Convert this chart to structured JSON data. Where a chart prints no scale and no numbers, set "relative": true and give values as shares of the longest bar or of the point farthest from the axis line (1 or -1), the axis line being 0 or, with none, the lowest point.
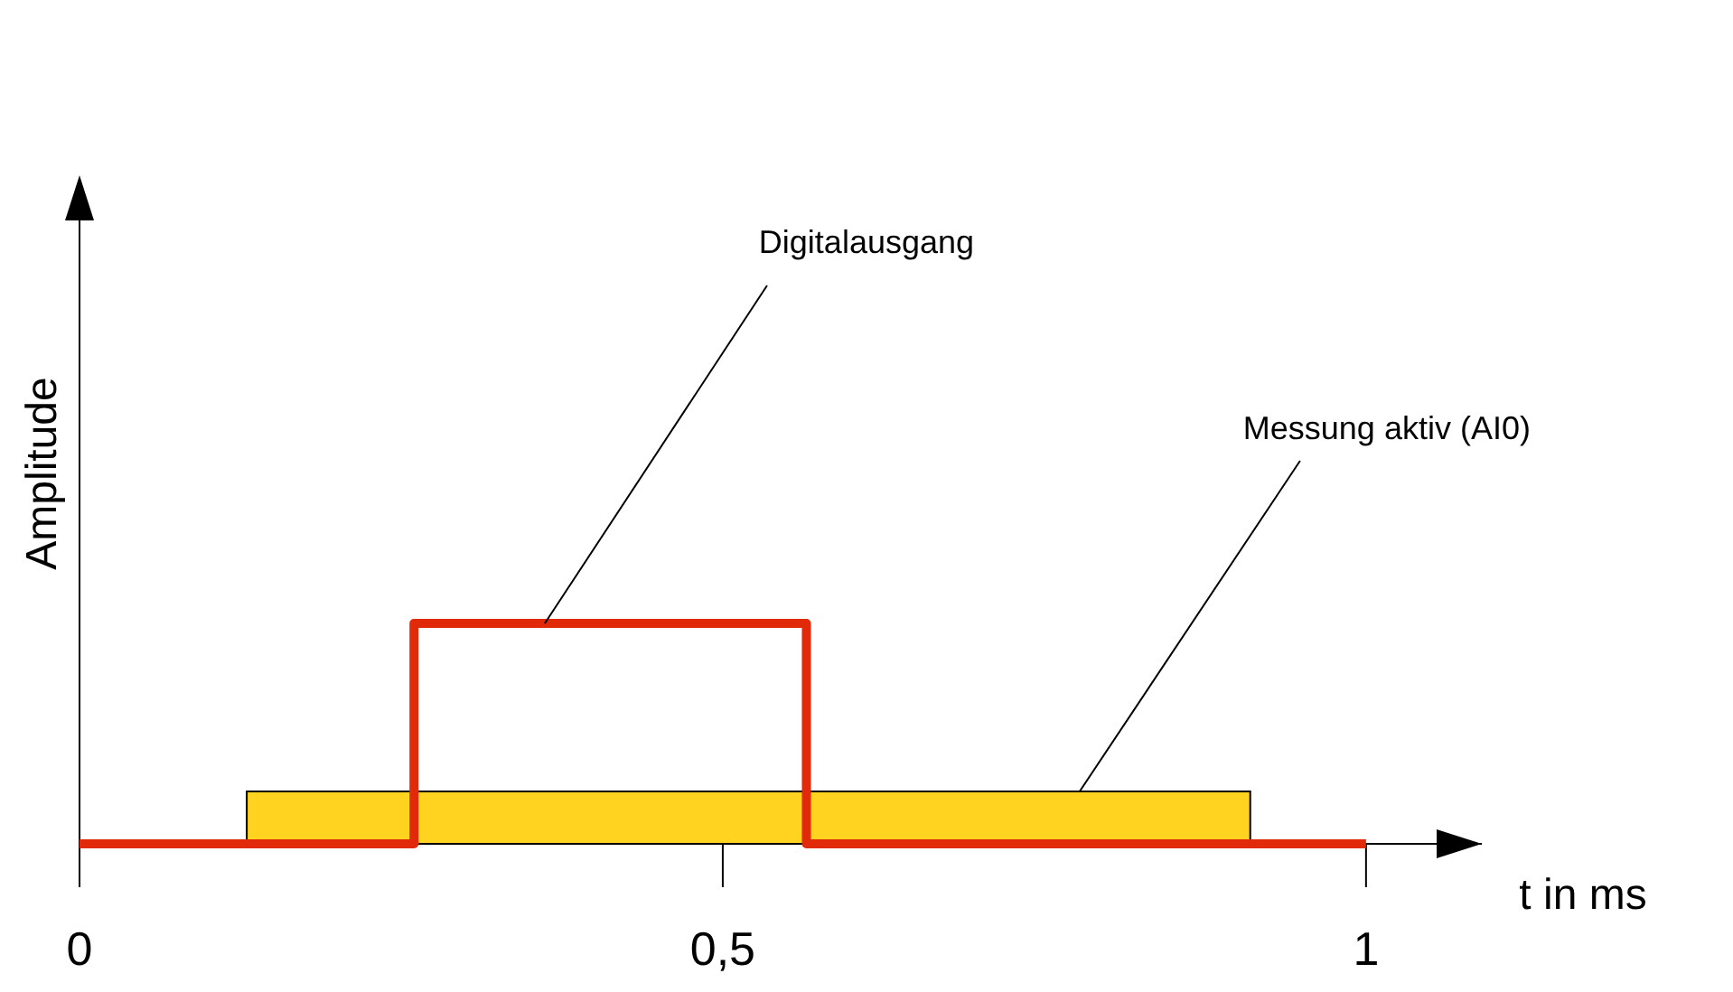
{
  "chart_data": {
    "type": "step",
    "relative": true,
    "xlabel": "t in ms",
    "ylabel": "Amplitude",
    "xlim": [
      0,
      1.09
    ],
    "xticks": [
      0,
      {
        "value": 0.5,
        "label": "0,5"
      },
      1
    ],
    "grid": false,
    "line_style": "solid",
    "marker": "none",
    "series": [
      {
        "name": "Digitalausgang",
        "color": "#e02a0a",
        "x": [
          0,
          0.26,
          0.565,
          1
        ],
        "values": [
          0,
          1,
          0,
          0
        ]
      }
    ],
    "bands": [
      {
        "axis": "x",
        "from": 0.13,
        "to": 0.91,
        "label": "Messung aktiv (AI0)",
        "color": "#ffd320"
      }
    ]
  }
}
